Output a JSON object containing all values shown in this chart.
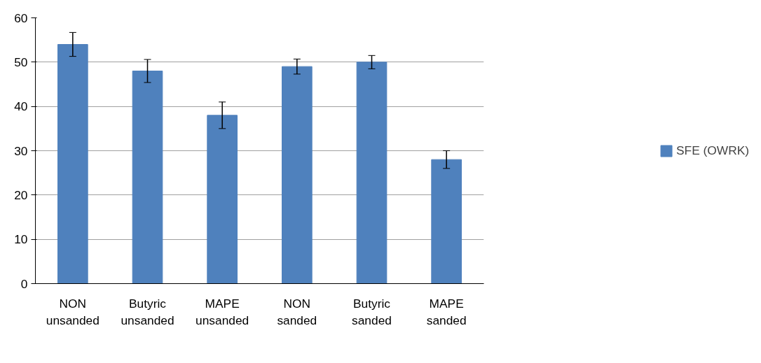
{
  "chart_data": {
    "type": "bar",
    "categories": [
      "NON\nunsanded",
      "Butyric\nunsanded",
      "MAPE\nunsanded",
      "NON\nsanded",
      "Butyric\nsanded",
      "MAPE\nsanded"
    ],
    "series": [
      {
        "name": "SFE (OWRK)",
        "color": "#4f81bd",
        "values": [
          54,
          48,
          38,
          49,
          50,
          28
        ],
        "errors": [
          2.7,
          2.6,
          3,
          1.7,
          1.5,
          2
        ]
      }
    ],
    "ylim": [
      0,
      60
    ],
    "yticks": [
      0,
      10,
      20,
      30,
      40,
      50,
      60
    ],
    "grid": "y",
    "legend": "right"
  }
}
